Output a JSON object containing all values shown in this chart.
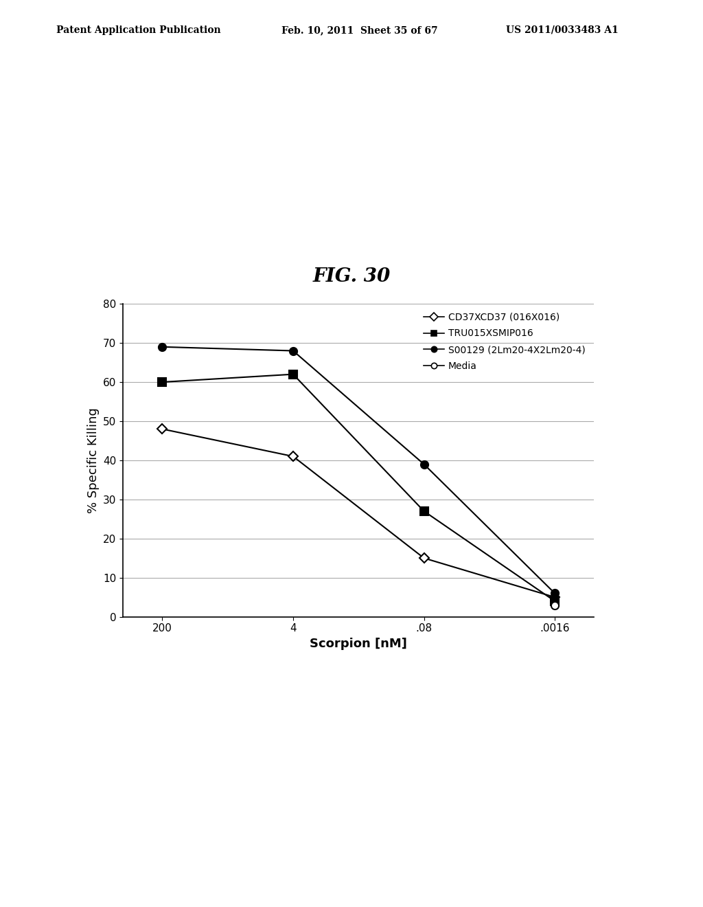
{
  "title": "FIG. 30",
  "xlabel": "Scorpion [nM]",
  "ylabel": "% Specific Killing",
  "xtick_labels": [
    "200",
    "4",
    ".08",
    ".0016"
  ],
  "ylim": [
    0,
    80
  ],
  "yticks": [
    0,
    10,
    20,
    30,
    40,
    50,
    60,
    70,
    80
  ],
  "series": [
    {
      "label": "CD37XCD37 (016X016)",
      "y": [
        48,
        41,
        15,
        5
      ],
      "marker": "D",
      "markersize": 7,
      "markerfacecolor": "white",
      "markeredgecolor": "black",
      "color": "black",
      "linestyle": "-"
    },
    {
      "label": "TRU015XSMIP016",
      "y": [
        60,
        62,
        27,
        4
      ],
      "marker": "s",
      "markersize": 8,
      "markerfacecolor": "black",
      "markeredgecolor": "black",
      "color": "black",
      "linestyle": "-"
    },
    {
      "label": "S00129 (2Lm20-4X2Lm20-4)",
      "y": [
        69,
        68,
        39,
        6
      ],
      "marker": "o",
      "markersize": 8,
      "markerfacecolor": "black",
      "markeredgecolor": "black",
      "color": "black",
      "linestyle": "-"
    },
    {
      "label": "Media",
      "y": [
        null,
        null,
        null,
        3
      ],
      "marker": "o",
      "markersize": 8,
      "markerfacecolor": "white",
      "markeredgecolor": "black",
      "color": "black",
      "linestyle": "-"
    }
  ],
  "patent_left": "Patent Application Publication",
  "patent_mid": "Feb. 10, 2011  Sheet 35 of 67",
  "patent_right": "US 2011/0033483 A1",
  "background_color": "white",
  "grid_color": "#aaaaaa",
  "title_fontsize": 20,
  "axis_label_fontsize": 13,
  "tick_fontsize": 11,
  "legend_fontsize": 10,
  "header_fontsize": 10
}
